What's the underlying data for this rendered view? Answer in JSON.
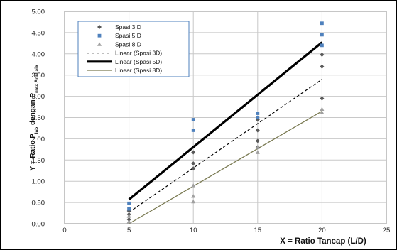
{
  "chart_data": {
    "type": "scatter",
    "title": "",
    "xlabel": "X = Ratio Tancap (L/D)",
    "ylabel": {
      "parts": [
        {
          "text": "Y = Ratio P",
          "sub": false
        },
        {
          "text": "lab",
          "sub": true
        },
        {
          "text": " dengan P",
          "sub": false
        },
        {
          "text": "max Analisis",
          "sub": true
        }
      ]
    },
    "xlim": [
      0,
      25
    ],
    "ylim": [
      0,
      5
    ],
    "x_ticks": [
      "0",
      "5",
      "10",
      "15",
      "20",
      "25"
    ],
    "y_ticks": [
      "0.00",
      "0.50",
      "1.00",
      "1.50",
      "2.00",
      "2.50",
      "3.00",
      "3.50",
      "4.00",
      "4.50",
      "5.00"
    ],
    "grid": true,
    "legend_position": "top-left",
    "series": [
      {
        "name": "Spasi 3 D",
        "marker": "diamond",
        "color": "#595959",
        "points": [
          [
            5,
            0.1
          ],
          [
            5,
            0.22
          ],
          [
            5,
            0.3
          ],
          [
            10,
            1.3
          ],
          [
            10,
            1.42
          ],
          [
            10,
            1.68
          ],
          [
            15,
            1.8
          ],
          [
            15,
            1.95
          ],
          [
            15,
            2.2
          ],
          [
            15,
            2.45
          ],
          [
            20,
            2.95
          ],
          [
            20,
            3.7
          ],
          [
            20,
            3.98
          ]
        ]
      },
      {
        "name": "Spasi 5 D",
        "marker": "square",
        "color": "#4f81bd",
        "points": [
          [
            5,
            0.35
          ],
          [
            5,
            0.48
          ],
          [
            10,
            2.2
          ],
          [
            10,
            2.45
          ],
          [
            15,
            2.5
          ],
          [
            15,
            2.6
          ],
          [
            20,
            4.2
          ],
          [
            20,
            4.45
          ],
          [
            20,
            4.72
          ]
        ]
      },
      {
        "name": "Spasi 8 D",
        "marker": "triangle",
        "color": "#a0a0a0",
        "points": [
          [
            5,
            0.05
          ],
          [
            5,
            0.18
          ],
          [
            10,
            0.52
          ],
          [
            10,
            0.65
          ],
          [
            10,
            0.9
          ],
          [
            15,
            1.68
          ],
          [
            15,
            1.8
          ],
          [
            20,
            2.62
          ],
          [
            20,
            2.7
          ]
        ]
      }
    ],
    "trendlines": [
      {
        "name": "Linear (Spasi 3D)",
        "style": "dashed",
        "color": "#000000",
        "from": [
          5,
          0.27
        ],
        "to": [
          20,
          3.4
        ]
      },
      {
        "name": "Linear (Spasi 5D)",
        "style": "thick",
        "color": "#000000",
        "from": [
          5,
          0.57
        ],
        "to": [
          20,
          4.27
        ]
      },
      {
        "name": "Linear (Spasi 8D)",
        "style": "thin",
        "color": "#7a7a52",
        "from": [
          5,
          0.0
        ],
        "to": [
          20,
          2.65
        ]
      }
    ]
  }
}
